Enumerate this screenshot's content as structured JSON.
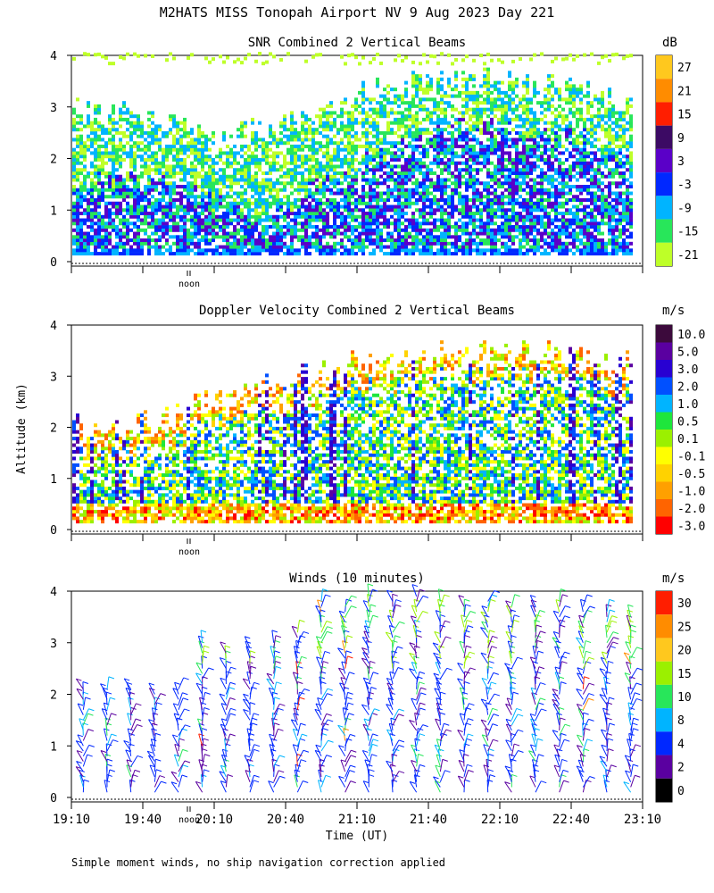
{
  "title": "M2HATS MISS Tonopah Airport NV   9 Aug 2023 Day 221",
  "footnote": "Simple moment winds, no ship navigation correction applied",
  "y_axis_label": "Altitude (km)",
  "x_axis_label": "Time (UT)",
  "noon_marker_label": "noon",
  "chart_data": [
    {
      "type": "heatmap",
      "title": "SNR Combined 2 Vertical Beams",
      "ylabel": "Altitude (km)",
      "ylim": [
        0,
        4
      ],
      "y_ticks": [
        "0",
        "1",
        "2",
        "3",
        "4"
      ],
      "colorbar_unit": "dB",
      "colorbar": [
        {
          "label": "27",
          "color": "#ffc81e"
        },
        {
          "label": "21",
          "color": "#ff8c00"
        },
        {
          "label": "15",
          "color": "#ff1e00"
        },
        {
          "label": "9",
          "color": "#3c0a64"
        },
        {
          "label": "3",
          "color": "#5a00c8"
        },
        {
          "label": "-3",
          "color": "#0028ff"
        },
        {
          "label": "-9",
          "color": "#00b4ff"
        },
        {
          "label": "-15",
          "color": "#28e65a"
        },
        {
          "label": "-21",
          "color": "#beff28"
        }
      ],
      "profile_x_hours": [
        19.17,
        19.5,
        19.83,
        20.17,
        20.5,
        20.83,
        21.17,
        21.5,
        21.83,
        22.17,
        22.5,
        22.83,
        23.1
      ],
      "echo_top_km": [
        2.9,
        2.9,
        2.7,
        2.4,
        2.6,
        2.8,
        3.3,
        3.4,
        3.5,
        3.5,
        3.4,
        3.3,
        3.0
      ],
      "strong_echo_top_km": [
        1.5,
        1.6,
        1.6,
        1.1,
        0.9,
        1.3,
        1.8,
        2.4,
        2.6,
        2.6,
        2.4,
        2.3,
        1.7
      ]
    },
    {
      "type": "heatmap",
      "title": "Doppler Velocity Combined 2 Vertical Beams",
      "ylabel": "Altitude (km)",
      "ylim": [
        0,
        4
      ],
      "y_ticks": [
        "0",
        "1",
        "2",
        "3",
        "4"
      ],
      "colorbar_unit": "m/s",
      "colorbar": [
        {
          "label": "10.0",
          "color": "#3c0a3c"
        },
        {
          "label": "5.0",
          "color": "#5a00a0"
        },
        {
          "label": "3.0",
          "color": "#2800d2"
        },
        {
          "label": "2.0",
          "color": "#0050ff"
        },
        {
          "label": "1.0",
          "color": "#00b4ff"
        },
        {
          "label": "0.5",
          "color": "#1ee63c"
        },
        {
          "label": "0.1",
          "color": "#9bf000"
        },
        {
          "label": "-0.1",
          "color": "#ffff00"
        },
        {
          "label": "-0.5",
          "color": "#ffd200"
        },
        {
          "label": "-1.0",
          "color": "#ffa000"
        },
        {
          "label": "-2.0",
          "color": "#ff6400"
        },
        {
          "label": "-3.0",
          "color": "#ff0000"
        }
      ],
      "profile_x_hours": [
        19.17,
        19.5,
        19.83,
        20.17,
        20.5,
        20.83,
        21.17,
        21.5,
        21.83,
        22.17,
        22.5,
        22.83,
        23.1
      ],
      "echo_top_km": [
        2.0,
        2.0,
        2.1,
        2.6,
        2.8,
        3.0,
        3.3,
        3.3,
        3.5,
        3.5,
        3.4,
        3.3,
        3.2
      ]
    },
    {
      "type": "scatter",
      "title": "Winds (10 minutes)",
      "xlabel": "Time (UT)",
      "ylabel": "Altitude (km)",
      "ylim": [
        0,
        4
      ],
      "y_ticks": [
        "0",
        "1",
        "2",
        "3",
        "4"
      ],
      "x_ticks": [
        "19:10",
        "19:40",
        "20:10",
        "20:40",
        "21:10",
        "21:40",
        "22:10",
        "22:40",
        "23:10"
      ],
      "colorbar_unit": "m/s",
      "colorbar": [
        {
          "label": "30",
          "color": "#ff1e00"
        },
        {
          "label": "25",
          "color": "#ff8c00"
        },
        {
          "label": "20",
          "color": "#ffc81e"
        },
        {
          "label": "15",
          "color": "#9bf000"
        },
        {
          "label": "10",
          "color": "#28e65a"
        },
        {
          "label": "8",
          "color": "#00b4ff"
        },
        {
          "label": "4",
          "color": "#0028ff"
        },
        {
          "label": "2",
          "color": "#5a00a0"
        },
        {
          "label": "0",
          "color": "#000000"
        }
      ],
      "profile_times_hhmm": [
        "19:15",
        "19:25",
        "19:35",
        "19:45",
        "19:55",
        "20:05",
        "20:15",
        "20:25",
        "20:35",
        "20:45",
        "20:55",
        "21:05",
        "21:15",
        "21:25",
        "21:35",
        "21:45",
        "21:55",
        "22:05",
        "22:15",
        "22:25",
        "22:35",
        "22:45",
        "22:55",
        "23:05"
      ],
      "profile_top_km": [
        2.2,
        2.2,
        2.2,
        2.1,
        2.2,
        3.1,
        2.9,
        3.0,
        3.1,
        3.3,
        3.9,
        3.8,
        4.0,
        3.9,
        4.0,
        3.9,
        3.8,
        3.9,
        3.8,
        3.8,
        3.9,
        3.8,
        3.7,
        3.6
      ],
      "upper_level_winds_km": [
        2.9,
        3.0,
        3.1,
        3.2
      ],
      "typical_speed_ms": [
        4,
        8
      ]
    }
  ]
}
